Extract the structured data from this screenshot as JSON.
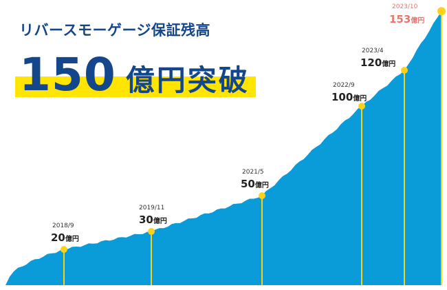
{
  "headline": "リバースモーゲージ保証残高",
  "big_number": "150",
  "big_unit": "億円突破",
  "colors": {
    "area": "#0a9bd9",
    "line": "#f5d31c",
    "dot": "#ffd21a",
    "highlight": "#ffe500",
    "title": "#14468c",
    "latest_label": "#e8766e"
  },
  "chart_data": {
    "type": "area",
    "title": "リバースモーゲージ保証残高",
    "series": [
      {
        "values": [
          [
            0.0,
            0
          ],
          [
            0.3,
            2
          ],
          [
            0.55,
            4
          ],
          [
            0.8,
            6
          ],
          [
            1.0,
            8
          ],
          [
            1.2,
            9
          ],
          [
            1.4,
            11
          ],
          [
            1.55,
            13
          ],
          [
            1.75,
            15
          ],
          [
            1.9,
            17
          ],
          [
            2.1,
            19
          ],
          [
            2.3,
            20
          ]
        ]
      }
    ],
    "markers": [
      {
        "date": "2018/9",
        "value": 20,
        "value_text": "20",
        "unit": "億円"
      },
      {
        "date": "2019/11",
        "value": 30,
        "value_text": "30",
        "unit": "億円"
      },
      {
        "date": "2021/5",
        "value": 50,
        "value_text": "50",
        "unit": "億円"
      },
      {
        "date": "2022/9",
        "value": 100,
        "value_text": "100",
        "unit": "億円"
      },
      {
        "date": "2023/4",
        "value": 120,
        "value_text": "120",
        "unit": "億円"
      },
      {
        "date": "2023/10",
        "value": 153,
        "value_text": "153",
        "unit": "億円"
      }
    ]
  }
}
